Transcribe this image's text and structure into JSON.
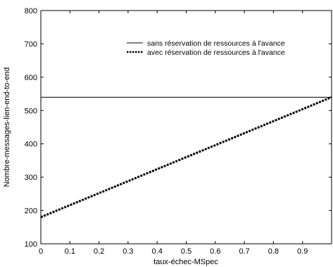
{
  "chart_data": {
    "type": "line",
    "title": "",
    "xlabel": "taux-échec-MSpec",
    "ylabel": "Nombre-messages-lien-end-to-end",
    "xlim": [
      0,
      1
    ],
    "ylim": [
      100,
      800
    ],
    "x_ticks": [
      "0",
      "0.1",
      "0.2",
      "0.3",
      "0.4",
      "0.5",
      "0.6",
      "0.7",
      "0.8",
      "0.9"
    ],
    "y_ticks": [
      "100",
      "200",
      "300",
      "400",
      "500",
      "600",
      "700",
      "800"
    ],
    "grid": false,
    "legend_position": "top-right",
    "series": [
      {
        "name": "sans réservation de ressources à l'avance",
        "style": "solid",
        "color": "#000000",
        "x": [
          0,
          1
        ],
        "y": [
          540,
          540
        ]
      },
      {
        "name": "avec réservation de ressources à l'avance",
        "style": "dashed",
        "color": "#000000",
        "x": [
          0,
          1
        ],
        "y": [
          180,
          540
        ]
      }
    ]
  }
}
